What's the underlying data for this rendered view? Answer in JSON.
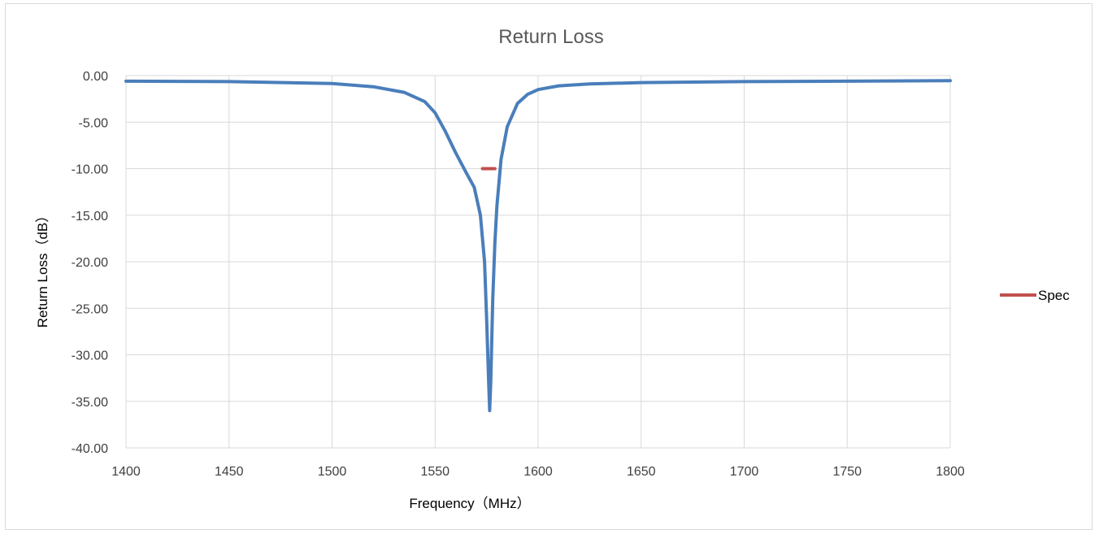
{
  "chart_data": {
    "type": "line",
    "title": "Return Loss",
    "xlabel": "Frequency（MHz）",
    "ylabel": "Return Loss（dB）",
    "xlim": [
      1400,
      1800
    ],
    "ylim": [
      -40,
      0
    ],
    "x_ticks": [
      1400,
      1450,
      1500,
      1550,
      1600,
      1650,
      1700,
      1750,
      1800
    ],
    "x_tick_labels": [
      "1400",
      "1450",
      "1500",
      "1550",
      "1600",
      "1650",
      "1700",
      "1750",
      "1800"
    ],
    "y_ticks": [
      0,
      -5,
      -10,
      -15,
      -20,
      -25,
      -30,
      -35,
      -40
    ],
    "y_tick_labels": [
      "0.00",
      "-5.00",
      "-10.00",
      "-15.00",
      "-20.00",
      "-25.00",
      "-30.00",
      "-35.00",
      "-40.00"
    ],
    "grid": true,
    "legend_position": "right",
    "series": [
      {
        "color": "#4a7ebb",
        "x": [
          1400,
          1450,
          1500,
          1520,
          1535,
          1545,
          1550,
          1555,
          1560,
          1565,
          1569,
          1572,
          1574,
          1575,
          1576,
          1576.5,
          1577,
          1578,
          1579,
          1580,
          1582,
          1585,
          1590,
          1595,
          1600,
          1610,
          1625,
          1650,
          1700,
          1750,
          1800
        ],
        "y": [
          -0.6,
          -0.65,
          -0.85,
          -1.2,
          -1.8,
          -2.8,
          -4.0,
          -6.0,
          -8.3,
          -10.4,
          -12.0,
          -15.0,
          -20.0,
          -26.0,
          -33.0,
          -36.0,
          -33.0,
          -24.0,
          -18.0,
          -14.0,
          -9.0,
          -5.5,
          -3.0,
          -2.0,
          -1.5,
          -1.1,
          -0.9,
          -0.75,
          -0.65,
          -0.6,
          -0.55
        ]
      },
      {
        "name": "Spec",
        "color": "#c0504d",
        "x": [
          1573,
          1579
        ],
        "y": [
          -10,
          -10
        ]
      }
    ]
  }
}
